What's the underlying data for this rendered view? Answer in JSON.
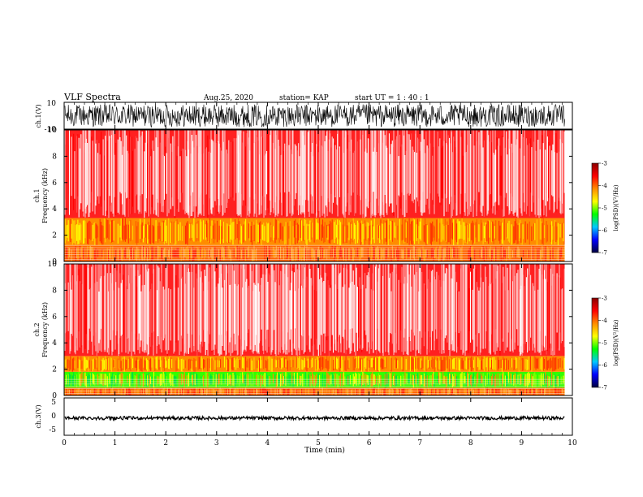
{
  "header": {
    "title": "VLF Spectra",
    "date": "Aug.25, 2020",
    "station": "station= KAP",
    "start": "start  UT =   1 : 40 : 1"
  },
  "colorbar": {
    "label": "log(PSD)(V²/Hz)",
    "ticks": [
      "-3",
      "-4",
      "-5",
      "-6",
      "-7"
    ],
    "stops": [
      "#8b0000",
      "#ff0000",
      "#ff8c00",
      "#ffff00",
      "#00ff00",
      "#00c8ff",
      "#0000ff",
      "#000040"
    ]
  },
  "chart_data": [
    {
      "type": "line",
      "name": "ch1-waveform",
      "ylabel": "ch.1(V)",
      "ylim": [
        -10,
        10
      ],
      "yticks": [
        "10",
        "-10"
      ],
      "x_range": [
        0,
        10
      ],
      "description_values": "dense oscillating signal spanning roughly -8 to +9 V over 0–9.85 min"
    },
    {
      "type": "heatmap",
      "name": "ch1-spectrogram",
      "ylabel": "ch.1",
      "ylabel2": "Frequency (kHz)",
      "ylim": [
        0,
        10
      ],
      "yticks": [
        "0",
        "2",
        "4",
        "6",
        "8",
        "10"
      ],
      "x_range": [
        0,
        9.85
      ],
      "bands": [
        {
          "from": 0.0,
          "to": 1.2,
          "level": "orange-red"
        },
        {
          "from": 1.2,
          "to": 3.3,
          "level": "orange-yellow"
        },
        {
          "from": 3.3,
          "to": 10.0,
          "level": "red-white"
        }
      ]
    },
    {
      "type": "heatmap",
      "name": "ch2-spectrogram",
      "ylabel": "ch.2",
      "ylabel2": "Frequency (kHz)",
      "ylim": [
        0,
        10
      ],
      "yticks": [
        "0",
        "2",
        "4",
        "6",
        "8",
        "10"
      ],
      "x_range": [
        0,
        9.85
      ],
      "bands": [
        {
          "from": 0.0,
          "to": 0.6,
          "level": "orange-red"
        },
        {
          "from": 0.6,
          "to": 1.8,
          "level": "green-yellow"
        },
        {
          "from": 1.8,
          "to": 3.0,
          "level": "orange-yellow"
        },
        {
          "from": 3.0,
          "to": 10.0,
          "level": "red-white"
        }
      ]
    },
    {
      "type": "line",
      "name": "ch3-waveform",
      "ylabel": "ch.3(V)",
      "ylim": [
        -5,
        5
      ],
      "yticks": [
        "5",
        "0",
        "-5"
      ],
      "x_range": [
        0,
        10
      ],
      "description_values": "nearly constant signal near 0 V with small ripple"
    }
  ],
  "xaxis": {
    "label": "Time  (min)",
    "ticks": [
      "0",
      "1",
      "2",
      "3",
      "4",
      "5",
      "6",
      "7",
      "8",
      "9",
      "10"
    ],
    "range": [
      0,
      10
    ]
  }
}
